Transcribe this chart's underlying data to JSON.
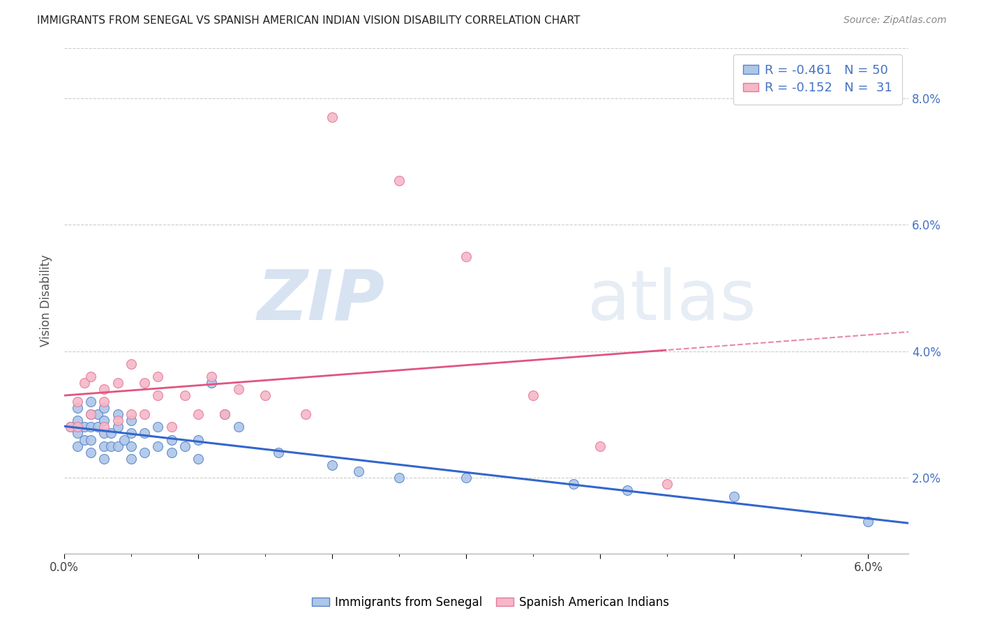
{
  "title": "IMMIGRANTS FROM SENEGAL VS SPANISH AMERICAN INDIAN VISION DISABILITY CORRELATION CHART",
  "source": "Source: ZipAtlas.com",
  "ylabel": "Vision Disability",
  "ylabel_right_ticks": [
    "2.0%",
    "4.0%",
    "6.0%",
    "8.0%"
  ],
  "ylabel_right_vals": [
    0.02,
    0.04,
    0.06,
    0.08
  ],
  "xlim": [
    0.0,
    0.063
  ],
  "ylim": [
    0.008,
    0.088
  ],
  "watermark_zip": "ZIP",
  "watermark_atlas": "atlas",
  "legend_line1": "R = -0.461   N = 50",
  "legend_line2": "R = -0.152   N =  31",
  "blue_label": "Immigrants from Senegal",
  "pink_label": "Spanish American Indians",
  "blue_fill": "#aec6e8",
  "pink_fill": "#f4b8c8",
  "blue_edge": "#5585c8",
  "pink_edge": "#e8779a",
  "blue_line_color": "#3366CC",
  "pink_line_color": "#E05580",
  "blue_scatter_x": [
    0.0005,
    0.001,
    0.001,
    0.001,
    0.001,
    0.0015,
    0.0015,
    0.002,
    0.002,
    0.002,
    0.002,
    0.002,
    0.0025,
    0.0025,
    0.003,
    0.003,
    0.003,
    0.003,
    0.003,
    0.0035,
    0.0035,
    0.004,
    0.004,
    0.004,
    0.0045,
    0.005,
    0.005,
    0.005,
    0.005,
    0.006,
    0.006,
    0.007,
    0.007,
    0.008,
    0.008,
    0.009,
    0.01,
    0.01,
    0.011,
    0.012,
    0.013,
    0.016,
    0.02,
    0.022,
    0.025,
    0.03,
    0.038,
    0.042,
    0.05,
    0.06
  ],
  "blue_scatter_y": [
    0.028,
    0.031,
    0.029,
    0.027,
    0.025,
    0.028,
    0.026,
    0.032,
    0.03,
    0.028,
    0.026,
    0.024,
    0.03,
    0.028,
    0.031,
    0.029,
    0.027,
    0.025,
    0.023,
    0.027,
    0.025,
    0.03,
    0.028,
    0.025,
    0.026,
    0.029,
    0.027,
    0.025,
    0.023,
    0.027,
    0.024,
    0.028,
    0.025,
    0.026,
    0.024,
    0.025,
    0.023,
    0.026,
    0.035,
    0.03,
    0.028,
    0.024,
    0.022,
    0.021,
    0.02,
    0.02,
    0.019,
    0.018,
    0.017,
    0.013
  ],
  "pink_scatter_x": [
    0.0005,
    0.001,
    0.001,
    0.0015,
    0.002,
    0.002,
    0.003,
    0.003,
    0.003,
    0.004,
    0.004,
    0.005,
    0.005,
    0.006,
    0.006,
    0.007,
    0.007,
    0.008,
    0.009,
    0.01,
    0.011,
    0.012,
    0.013,
    0.015,
    0.018,
    0.02,
    0.025,
    0.03,
    0.035,
    0.04,
    0.045
  ],
  "pink_scatter_y": [
    0.028,
    0.032,
    0.028,
    0.035,
    0.03,
    0.036,
    0.034,
    0.032,
    0.028,
    0.035,
    0.029,
    0.038,
    0.03,
    0.035,
    0.03,
    0.036,
    0.033,
    0.028,
    0.033,
    0.03,
    0.036,
    0.03,
    0.034,
    0.033,
    0.03,
    0.077,
    0.067,
    0.055,
    0.033,
    0.025,
    0.019
  ],
  "grid_color": "#cccccc",
  "background_color": "#ffffff",
  "accent_color": "#4472C4",
  "x_tick_positions": [
    0.0,
    0.01,
    0.02,
    0.03,
    0.04,
    0.05,
    0.06
  ],
  "x_tick_minor": [
    0.005,
    0.015,
    0.025,
    0.035,
    0.045,
    0.055
  ]
}
